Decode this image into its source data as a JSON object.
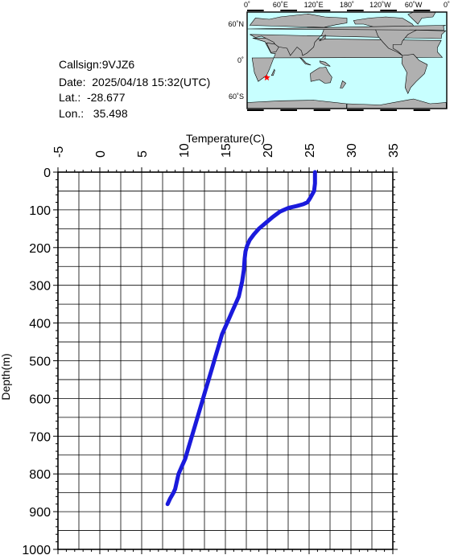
{
  "info": {
    "callsign": "Callsign:9VJZ6",
    "date": "Date:  2025/04/18 15:32(UTC)",
    "lat": "Lat.:  -28.677",
    "lon": "Lon.:   35.498"
  },
  "map": {
    "top_labels": [
      "0˚",
      "60˚E",
      "120˚E",
      "180˚",
      "120˚W",
      "60˚W",
      "0˚"
    ],
    "side_labels": [
      "60˚N",
      "0˚",
      "60˚S"
    ],
    "ocean_color": "#c8ffff",
    "land_color": "#b0b0b0",
    "marker_color": "#ff0000",
    "marker_lat": -28.677,
    "marker_lon": 35.498
  },
  "chart_data": {
    "type": "line",
    "xlabel": "Temperature(C)",
    "ylabel": "Depth(m)",
    "xlim": [
      -5,
      35
    ],
    "ylim": [
      0,
      1000
    ],
    "x_ticks": [
      "-5",
      "0",
      "5",
      "10",
      "15",
      "20",
      "25",
      "30",
      "35"
    ],
    "y_ticks": [
      "0",
      "100",
      "200",
      "300",
      "400",
      "500",
      "600",
      "700",
      "800",
      "900",
      "1000"
    ],
    "grid": true,
    "line_color": "#1a1adc",
    "series": [
      {
        "x": [
          25.7,
          25.7,
          25.6,
          25.1,
          24.8,
          24.3,
          23.5,
          22.5,
          21.5,
          20.6,
          19.8,
          19.0,
          18.4,
          17.9,
          17.6,
          17.4,
          17.3,
          17.2,
          17.0,
          16.8,
          16.6,
          16.2,
          15.8,
          15.4,
          15.0,
          14.6,
          14.2,
          13.8,
          13.4,
          13.0,
          12.6,
          12.2,
          11.8,
          11.4,
          11.0,
          10.6,
          10.2,
          9.8,
          9.4,
          9.2,
          9.0,
          8.8,
          8.4,
          8.1
        ],
        "y": [
          0,
          30,
          50,
          70,
          80,
          85,
          90,
          95,
          105,
          120,
          135,
          150,
          165,
          180,
          195,
          210,
          230,
          260,
          290,
          310,
          330,
          350,
          370,
          390,
          410,
          430,
          460,
          490,
          520,
          550,
          580,
          610,
          640,
          670,
          700,
          730,
          760,
          780,
          800,
          820,
          840,
          850,
          865,
          880
        ]
      }
    ]
  }
}
